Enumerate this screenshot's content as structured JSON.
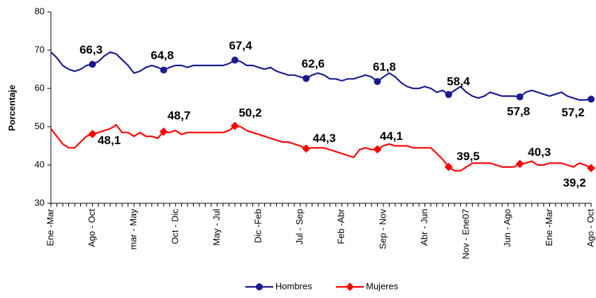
{
  "chart_data": {
    "type": "line",
    "y_label": "Porcentaje",
    "ylim": [
      30,
      80
    ],
    "yticks": [
      30,
      40,
      50,
      60,
      70,
      80
    ],
    "legend": "bottom",
    "categories": [
      "Ene -Mar",
      null,
      null,
      null,
      null,
      null,
      null,
      "Ago - Oct",
      null,
      null,
      null,
      null,
      null,
      null,
      "mar - May",
      null,
      null,
      null,
      null,
      null,
      null,
      "Oct - Dic",
      null,
      null,
      null,
      null,
      null,
      null,
      "May - Jul",
      null,
      null,
      null,
      null,
      null,
      null,
      "Dic -Feb",
      null,
      null,
      null,
      null,
      null,
      null,
      "Jul - Sep",
      null,
      null,
      null,
      null,
      null,
      null,
      "Feb -Abr",
      null,
      null,
      null,
      null,
      null,
      null,
      "Sep - Nov",
      null,
      null,
      null,
      null,
      null,
      null,
      "Abr - Jun",
      null,
      null,
      null,
      null,
      null,
      null,
      "Nov - Ene07",
      null,
      null,
      null,
      null,
      null,
      null,
      "Jun - Ago",
      null,
      null,
      null,
      null,
      null,
      null,
      "Ene -Mar",
      null,
      null,
      null,
      null,
      null,
      null,
      "Ago - Oct"
    ],
    "series": [
      {
        "name": "Hombres",
        "color": "#1a1a8c",
        "label_color": "#3b3b9e",
        "marker": "circle",
        "values": [
          69.5,
          68,
          66,
          65,
          64.5,
          65,
          66,
          66.3,
          67,
          68.5,
          69.5,
          69,
          67.5,
          66,
          64,
          64.5,
          65.5,
          66,
          65.5,
          64.8,
          65.5,
          66,
          66,
          65.5,
          66,
          66,
          66,
          66,
          66,
          66,
          66.5,
          67.4,
          67,
          66,
          66,
          65.5,
          65,
          65.5,
          64.5,
          64,
          63.5,
          63.5,
          63,
          62.6,
          63.5,
          64,
          63.5,
          62.5,
          62.5,
          62,
          62.5,
          62.5,
          63,
          63.5,
          63,
          61.8,
          63,
          64,
          63,
          61.5,
          60.5,
          60,
          60,
          60.5,
          60,
          59,
          59.5,
          58.4,
          59.5,
          60.5,
          59,
          58,
          57.5,
          58,
          59,
          58.5,
          58,
          58,
          58,
          57.8,
          59,
          59.5,
          59,
          58.5,
          58,
          58.5,
          59,
          58,
          57.5,
          57,
          57,
          57.2
        ],
        "value_labels": [
          null,
          null,
          null,
          null,
          null,
          null,
          null,
          "66,3",
          null,
          null,
          null,
          null,
          null,
          null,
          null,
          null,
          null,
          null,
          null,
          "64,8",
          null,
          null,
          null,
          null,
          null,
          null,
          null,
          null,
          null,
          null,
          null,
          "67,4",
          null,
          null,
          null,
          null,
          null,
          null,
          null,
          null,
          null,
          null,
          null,
          "62,6",
          null,
          null,
          null,
          null,
          null,
          null,
          null,
          null,
          null,
          null,
          null,
          "61,8",
          null,
          null,
          null,
          null,
          null,
          null,
          null,
          null,
          null,
          null,
          null,
          "58,4",
          null,
          null,
          null,
          null,
          null,
          null,
          null,
          null,
          null,
          null,
          null,
          "57,8",
          null,
          null,
          null,
          null,
          null,
          null,
          null,
          null,
          null,
          null,
          null,
          "57,2"
        ]
      },
      {
        "name": "Mujeres",
        "color": "#ff0000",
        "label_color": "#ff0000",
        "marker": "diamond",
        "values": [
          49.5,
          47.5,
          45.5,
          44.5,
          44.5,
          46,
          47.5,
          48.1,
          48.5,
          49,
          49.5,
          50.5,
          48.5,
          48.5,
          47.5,
          48.5,
          47.5,
          47.5,
          47,
          48.7,
          48.5,
          49,
          48,
          48.5,
          48.5,
          48.5,
          48.5,
          48.5,
          48.5,
          48.5,
          49,
          50.2,
          50,
          49,
          48.5,
          48,
          47.5,
          47,
          46.5,
          46,
          46,
          45.5,
          45,
          44.3,
          44.5,
          44.5,
          44.5,
          44,
          43.5,
          43,
          42.5,
          42,
          44,
          44.5,
          44,
          44.1,
          45,
          45.5,
          45,
          45,
          45,
          44.5,
          44.5,
          44.5,
          44.5,
          43,
          41.5,
          39.5,
          38.5,
          38.5,
          39.5,
          40.5,
          40.5,
          40.5,
          40.5,
          40,
          39.5,
          39.5,
          39.5,
          40.3,
          40.5,
          41,
          40,
          40,
          40.5,
          40.5,
          40.5,
          40,
          39.5,
          40.5,
          40,
          39.2
        ],
        "value_labels": [
          null,
          null,
          null,
          null,
          null,
          null,
          null,
          "48,1",
          null,
          null,
          null,
          null,
          null,
          null,
          null,
          null,
          null,
          null,
          null,
          "48,7",
          null,
          null,
          null,
          null,
          null,
          null,
          null,
          null,
          null,
          null,
          null,
          "50,2",
          null,
          null,
          null,
          null,
          null,
          null,
          null,
          null,
          null,
          null,
          null,
          "44,3",
          null,
          null,
          null,
          null,
          null,
          null,
          null,
          null,
          null,
          null,
          null,
          "44,1",
          null,
          null,
          null,
          null,
          null,
          null,
          null,
          null,
          null,
          null,
          null,
          "39,5",
          null,
          null,
          null,
          null,
          null,
          null,
          null,
          null,
          null,
          null,
          null,
          "40,3",
          null,
          null,
          null,
          null,
          null,
          null,
          null,
          null,
          null,
          null,
          null,
          "39,2"
        ]
      }
    ]
  }
}
